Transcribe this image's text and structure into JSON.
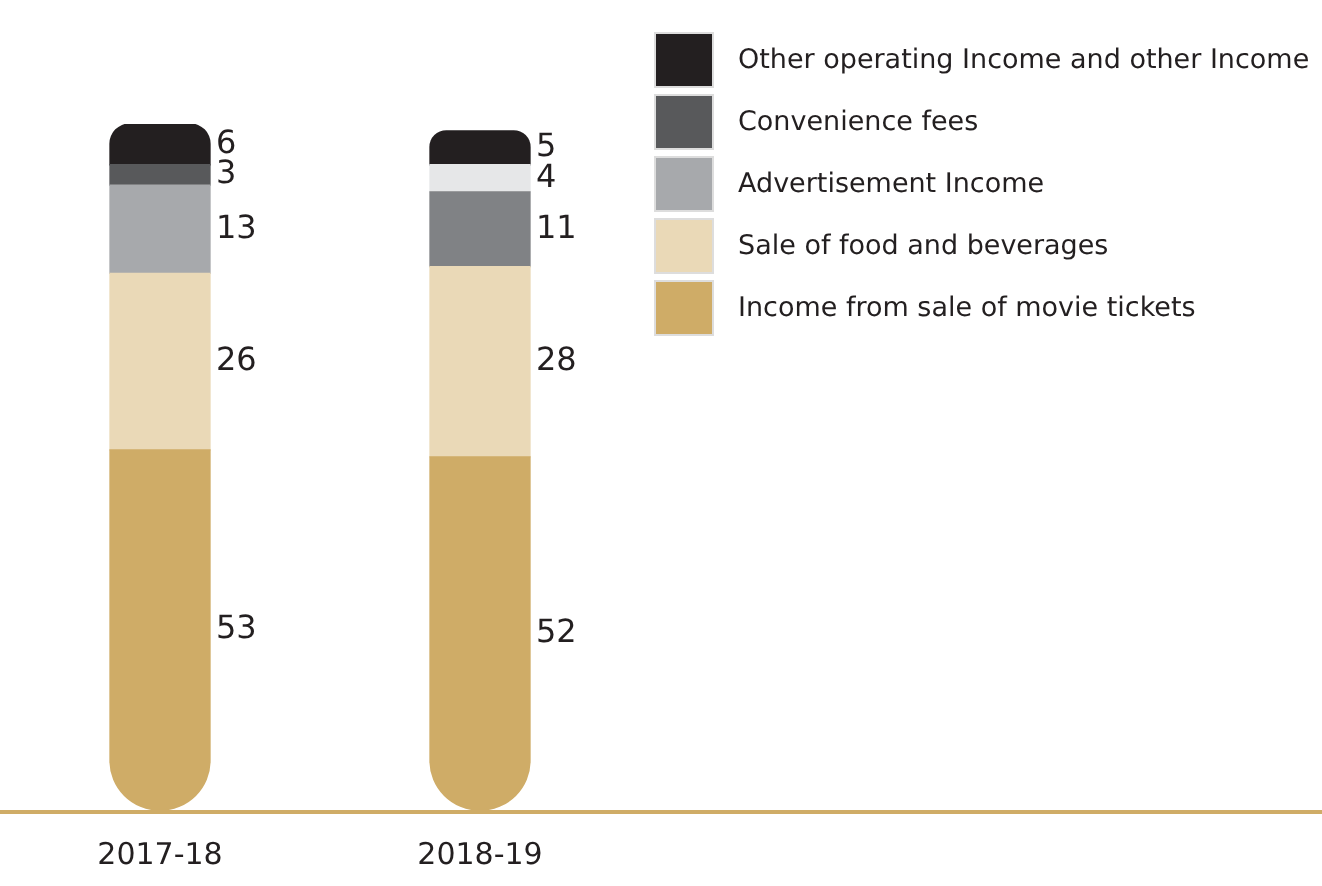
{
  "chart_data": {
    "type": "bar",
    "stacked": true,
    "categories": [
      "2017-18",
      "2018-19"
    ],
    "series": [
      {
        "name": "Income from sale of movie tickets",
        "color": "#cfac67",
        "values": [
          53,
          52
        ]
      },
      {
        "name": "Sale of food and beverages",
        "color": "#ead9b7",
        "values": [
          26,
          28
        ]
      },
      {
        "name": "Advertisement Income",
        "color": "#a7a9ac",
        "colors": [
          "#a7a9ac",
          "#808285"
        ],
        "values": [
          13,
          11
        ]
      },
      {
        "name": "Convenience fees",
        "color": "#58595b",
        "colors": [
          "#58595b",
          "#e6e7e8"
        ],
        "values": [
          3,
          4
        ]
      },
      {
        "name": "Other operating Income and other Income",
        "color": "#231f20",
        "values": [
          6,
          5
        ]
      }
    ],
    "data_labels": true,
    "legend": "top right",
    "grid": false
  }
}
